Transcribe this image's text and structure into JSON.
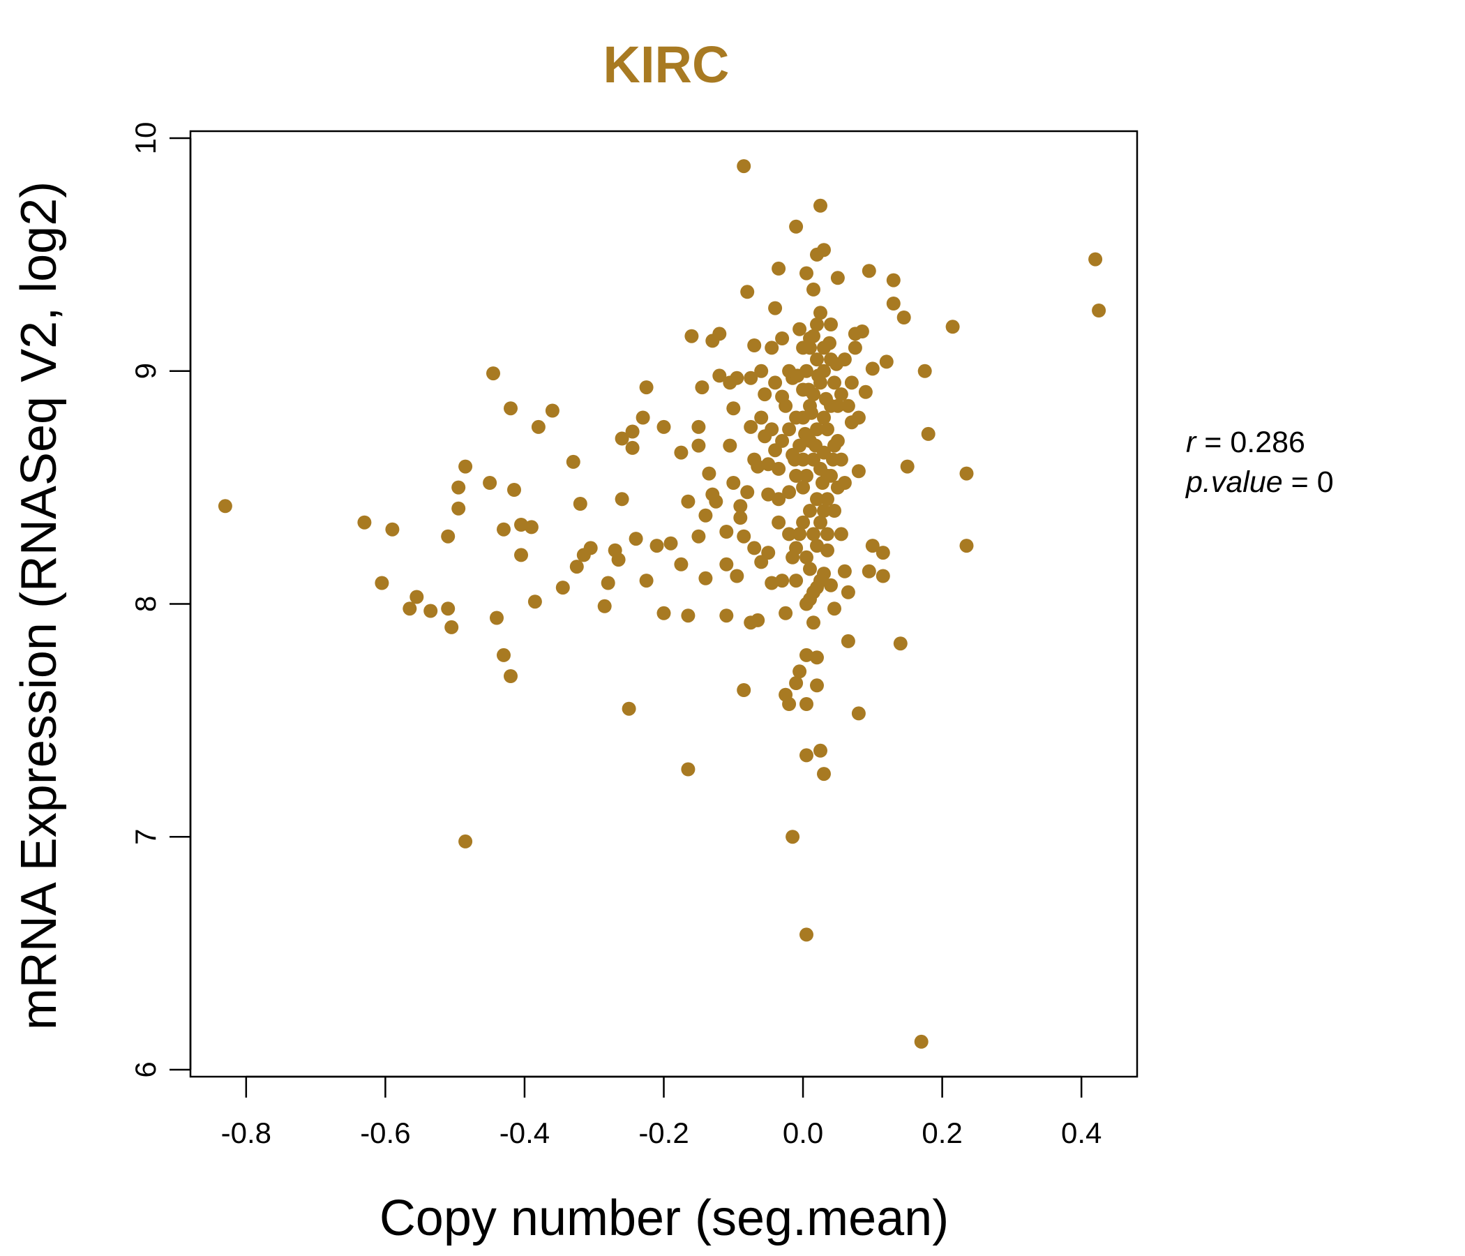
{
  "chart_data": {
    "type": "scatter",
    "title": "KIRC",
    "xlabel": "Copy number (seg.mean)",
    "ylabel": "mRNA Expression (RNASeq V2, log2)",
    "xlim": [
      -0.88,
      0.48
    ],
    "ylim": [
      5.97,
      10.03
    ],
    "x_ticks": [
      -0.8,
      -0.6,
      -0.4,
      -0.2,
      0.0,
      0.2,
      0.4
    ],
    "x_tick_labels": [
      "-0.8",
      "-0.6",
      "-0.4",
      "-0.2",
      "0.0",
      "0.2",
      "0.4"
    ],
    "y_ticks": [
      6,
      7,
      8,
      9,
      10
    ],
    "y_tick_labels": [
      "6",
      "7",
      "8",
      "9",
      "10"
    ],
    "grid": false,
    "legend": "none",
    "color": "#A87A22",
    "annotation": {
      "r_label": "r",
      "r_value": "0.286",
      "p_label": "p.value",
      "p_value": "0"
    },
    "points": [
      [
        -0.83,
        8.42
      ],
      [
        -0.63,
        8.35
      ],
      [
        -0.59,
        8.32
      ],
      [
        -0.605,
        8.09
      ],
      [
        -0.555,
        8.03
      ],
      [
        -0.565,
        7.98
      ],
      [
        -0.535,
        7.97
      ],
      [
        -0.51,
        7.98
      ],
      [
        -0.505,
        7.9
      ],
      [
        -0.51,
        8.29
      ],
      [
        -0.495,
        8.41
      ],
      [
        -0.495,
        8.5
      ],
      [
        -0.485,
        8.59
      ],
      [
        -0.485,
        6.98
      ],
      [
        -0.45,
        8.52
      ],
      [
        -0.445,
        8.99
      ],
      [
        -0.44,
        7.94
      ],
      [
        -0.43,
        7.78
      ],
      [
        -0.43,
        8.32
      ],
      [
        -0.42,
        7.69
      ],
      [
        -0.42,
        8.84
      ],
      [
        -0.415,
        8.49
      ],
      [
        -0.405,
        8.34
      ],
      [
        -0.405,
        8.21
      ],
      [
        -0.39,
        8.33
      ],
      [
        -0.385,
        8.01
      ],
      [
        -0.38,
        8.76
      ],
      [
        -0.36,
        8.83
      ],
      [
        -0.345,
        8.07
      ],
      [
        -0.33,
        8.61
      ],
      [
        -0.325,
        8.16
      ],
      [
        -0.32,
        8.43
      ],
      [
        -0.315,
        8.21
      ],
      [
        -0.305,
        8.24
      ],
      [
        -0.285,
        7.99
      ],
      [
        -0.28,
        8.09
      ],
      [
        -0.27,
        8.23
      ],
      [
        -0.265,
        8.19
      ],
      [
        -0.26,
        8.71
      ],
      [
        -0.26,
        8.45
      ],
      [
        -0.25,
        7.55
      ],
      [
        -0.245,
        8.74
      ],
      [
        -0.245,
        8.67
      ],
      [
        -0.24,
        8.28
      ],
      [
        -0.23,
        8.8
      ],
      [
        -0.225,
        8.93
      ],
      [
        -0.225,
        8.1
      ],
      [
        -0.21,
        8.25
      ],
      [
        -0.2,
        8.76
      ],
      [
        -0.2,
        7.96
      ],
      [
        -0.19,
        8.26
      ],
      [
        -0.175,
        8.65
      ],
      [
        -0.175,
        8.17
      ],
      [
        -0.165,
        8.44
      ],
      [
        -0.165,
        7.95
      ],
      [
        -0.165,
        7.29
      ],
      [
        -0.16,
        9.15
      ],
      [
        -0.15,
        8.76
      ],
      [
        -0.15,
        8.68
      ],
      [
        -0.15,
        8.29
      ],
      [
        -0.145,
        8.93
      ],
      [
        -0.14,
        8.38
      ],
      [
        -0.14,
        8.11
      ],
      [
        -0.135,
        8.56
      ],
      [
        -0.13,
        9.13
      ],
      [
        -0.13,
        8.47
      ],
      [
        -0.125,
        8.44
      ],
      [
        -0.12,
        9.16
      ],
      [
        -0.12,
        8.98
      ],
      [
        -0.11,
        7.95
      ],
      [
        -0.11,
        8.31
      ],
      [
        -0.11,
        8.17
      ],
      [
        -0.105,
        8.95
      ],
      [
        -0.105,
        8.68
      ],
      [
        -0.1,
        8.52
      ],
      [
        -0.1,
        8.84
      ],
      [
        -0.095,
        8.97
      ],
      [
        -0.095,
        8.12
      ],
      [
        -0.09,
        8.42
      ],
      [
        -0.09,
        8.37
      ],
      [
        -0.085,
        9.88
      ],
      [
        -0.085,
        7.63
      ],
      [
        -0.085,
        8.29
      ],
      [
        -0.08,
        9.34
      ],
      [
        -0.08,
        8.48
      ],
      [
        -0.075,
        8.97
      ],
      [
        -0.075,
        8.76
      ],
      [
        -0.075,
        7.92
      ],
      [
        -0.07,
        9.11
      ],
      [
        -0.07,
        8.62
      ],
      [
        -0.07,
        8.24
      ],
      [
        -0.065,
        8.59
      ],
      [
        -0.065,
        7.93
      ],
      [
        -0.06,
        9.0
      ],
      [
        -0.06,
        8.8
      ],
      [
        -0.06,
        8.18
      ],
      [
        -0.055,
        8.72
      ],
      [
        -0.05,
        8.47
      ],
      [
        -0.05,
        8.22
      ],
      [
        -0.045,
        9.1
      ],
      [
        -0.045,
        8.09
      ],
      [
        -0.04,
        9.27
      ],
      [
        -0.04,
        8.66
      ],
      [
        -0.035,
        9.44
      ],
      [
        -0.035,
        8.58
      ],
      [
        -0.035,
        8.35
      ],
      [
        -0.03,
        9.14
      ],
      [
        -0.03,
        8.89
      ],
      [
        -0.03,
        8.1
      ],
      [
        -0.025,
        7.61
      ],
      [
        -0.025,
        7.96
      ],
      [
        -0.02,
        8.75
      ],
      [
        -0.02,
        8.48
      ],
      [
        -0.02,
        7.57
      ],
      [
        -0.015,
        8.97
      ],
      [
        -0.015,
        8.64
      ],
      [
        -0.015,
        7.0
      ],
      [
        -0.01,
        9.62
      ],
      [
        -0.01,
        8.24
      ],
      [
        -0.01,
        7.66
      ],
      [
        -0.005,
        7.71
      ],
      [
        -0.005,
        9.18
      ],
      [
        0.0,
        8.92
      ],
      [
        0.0,
        8.62
      ],
      [
        0.0,
        8.35
      ],
      [
        0.005,
        9.42
      ],
      [
        0.005,
        7.78
      ],
      [
        0.005,
        7.57
      ],
      [
        0.005,
        6.58
      ],
      [
        0.005,
        7.35
      ],
      [
        0.01,
        8.02
      ],
      [
        0.01,
        9.14
      ],
      [
        0.01,
        8.85
      ],
      [
        0.015,
        7.92
      ],
      [
        0.015,
        9.35
      ],
      [
        0.02,
        9.5
      ],
      [
        0.02,
        8.07
      ],
      [
        0.02,
        7.77
      ],
      [
        0.02,
        7.65
      ],
      [
        0.025,
        9.71
      ],
      [
        0.025,
        7.37
      ],
      [
        0.03,
        9.52
      ],
      [
        0.03,
        8.13
      ],
      [
        0.03,
        7.27
      ],
      [
        0.035,
        8.55
      ],
      [
        0.035,
        8.23
      ],
      [
        0.04,
        8.08
      ],
      [
        0.04,
        9.05
      ],
      [
        0.045,
        7.98
      ],
      [
        0.045,
        8.68
      ],
      [
        0.05,
        9.4
      ],
      [
        0.05,
        8.85
      ],
      [
        0.055,
        8.62
      ],
      [
        0.06,
        8.14
      ],
      [
        0.06,
        8.52
      ],
      [
        0.065,
        8.05
      ],
      [
        0.065,
        7.84
      ],
      [
        0.07,
        8.78
      ],
      [
        0.075,
        9.16
      ],
      [
        0.08,
        8.57
      ],
      [
        0.08,
        7.53
      ],
      [
        0.085,
        9.17
      ],
      [
        0.09,
        8.91
      ],
      [
        0.095,
        9.43
      ],
      [
        0.095,
        8.14
      ],
      [
        0.1,
        8.25
      ],
      [
        0.1,
        9.01
      ],
      [
        0.115,
        8.22
      ],
      [
        0.115,
        8.12
      ],
      [
        0.12,
        9.04
      ],
      [
        0.13,
        9.39
      ],
      [
        0.13,
        9.29
      ],
      [
        0.14,
        7.83
      ],
      [
        0.145,
        9.23
      ],
      [
        0.15,
        8.59
      ],
      [
        0.17,
        6.12
      ],
      [
        0.175,
        9.0
      ],
      [
        0.18,
        8.73
      ],
      [
        0.215,
        9.19
      ],
      [
        0.235,
        8.56
      ],
      [
        0.235,
        8.25
      ],
      [
        0.42,
        9.48
      ],
      [
        0.425,
        9.26
      ],
      [
        0.005,
        8.0
      ],
      [
        0.015,
        8.62
      ],
      [
        0.02,
        8.75
      ],
      [
        0.025,
        8.58
      ],
      [
        0.03,
        8.8
      ],
      [
        0.01,
        8.7
      ],
      [
        0.0,
        8.8
      ],
      [
        0.005,
        8.55
      ],
      [
        0.015,
        8.9
      ],
      [
        0.02,
        8.45
      ],
      [
        0.025,
        8.95
      ],
      [
        0.01,
        8.4
      ],
      [
        -0.005,
        8.68
      ],
      [
        0.03,
        8.65
      ],
      [
        0.035,
        8.75
      ],
      [
        0.0,
        8.5
      ],
      [
        0.005,
        9.0
      ],
      [
        0.015,
        8.3
      ],
      [
        0.02,
        9.05
      ],
      [
        0.025,
        8.35
      ],
      [
        0.03,
        9.1
      ],
      [
        0.035,
        8.45
      ],
      [
        0.04,
        8.85
      ],
      [
        -0.01,
        8.8
      ],
      [
        -0.01,
        8.55
      ],
      [
        0.01,
        9.1
      ],
      [
        0.015,
        9.15
      ],
      [
        0.02,
        9.2
      ],
      [
        0.025,
        9.25
      ],
      [
        0.03,
        9.0
      ],
      [
        0.04,
        9.2
      ],
      [
        0.045,
        8.95
      ],
      [
        0.05,
        8.7
      ],
      [
        0.055,
        8.9
      ],
      [
        0.06,
        9.05
      ],
      [
        0.065,
        8.85
      ],
      [
        0.07,
        8.95
      ],
      [
        0.075,
        9.1
      ],
      [
        0.08,
        8.8
      ],
      [
        -0.02,
        9.0
      ],
      [
        -0.025,
        8.85
      ],
      [
        -0.03,
        8.7
      ],
      [
        -0.035,
        8.45
      ],
      [
        -0.04,
        8.95
      ],
      [
        -0.045,
        8.75
      ],
      [
        -0.05,
        8.6
      ],
      [
        -0.055,
        8.9
      ],
      [
        0.0,
        9.1
      ],
      [
        0.005,
        8.2
      ],
      [
        0.01,
        8.15
      ],
      [
        0.015,
        8.05
      ],
      [
        0.02,
        8.25
      ],
      [
        0.025,
        8.1
      ],
      [
        0.03,
        8.4
      ],
      [
        0.035,
        8.3
      ],
      [
        0.04,
        8.55
      ],
      [
        0.045,
        8.4
      ],
      [
        0.05,
        8.5
      ],
      [
        0.055,
        8.3
      ],
      [
        -0.005,
        8.3
      ],
      [
        -0.01,
        8.1
      ],
      [
        -0.015,
        8.2
      ],
      [
        -0.02,
        8.3
      ],
      [
        0.012,
        8.82
      ],
      [
        0.018,
        8.68
      ],
      [
        0.022,
        8.98
      ],
      [
        0.008,
        8.92
      ],
      [
        0.028,
        8.52
      ],
      [
        0.033,
        8.88
      ],
      [
        0.003,
        8.73
      ],
      [
        0.038,
        9.12
      ],
      [
        0.043,
        8.62
      ],
      [
        0.048,
        9.03
      ],
      [
        -0.008,
        8.98
      ],
      [
        -0.012,
        8.62
      ]
    ]
  }
}
